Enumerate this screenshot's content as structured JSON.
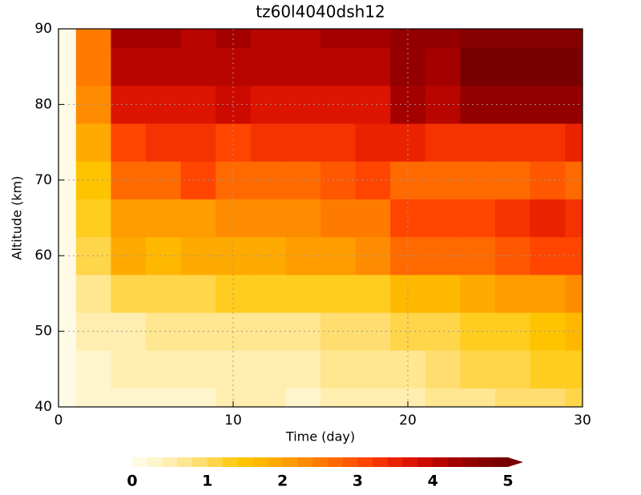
{
  "chart_data": {
    "type": "heatmap",
    "title": "tz60l4040dsh12",
    "x_label": "Time (day)",
    "y_label": "Altitude (km)",
    "x": [
      0,
      2,
      4,
      6,
      8,
      10,
      12,
      14,
      16,
      18,
      20,
      22,
      24,
      26,
      28,
      30
    ],
    "y": [
      40,
      45,
      50,
      55,
      60,
      65,
      70,
      75,
      80,
      85,
      90
    ],
    "z": [
      [
        0,
        0.2,
        0.3,
        0.3,
        0.3,
        0.4,
        0.4,
        0.3,
        0.4,
        0.5,
        0.5,
        0.6,
        0.7,
        0.8,
        0.9,
        1.0
      ],
      [
        0,
        0.3,
        0.4,
        0.4,
        0.4,
        0.5,
        0.5,
        0.5,
        0.6,
        0.6,
        0.7,
        0.8,
        1.0,
        1.1,
        1.2,
        1.3
      ],
      [
        0,
        0.4,
        0.5,
        0.6,
        0.6,
        0.7,
        0.7,
        0.7,
        0.8,
        0.8,
        1.0,
        1.1,
        1.3,
        1.4,
        1.5,
        1.6
      ],
      [
        0,
        0.6,
        1.0,
        1.0,
        1.1,
        1.2,
        1.2,
        1.2,
        1.3,
        1.4,
        1.6,
        1.7,
        1.9,
        2.0,
        2.1,
        2.2
      ],
      [
        0,
        1.0,
        1.8,
        1.7,
        1.8,
        1.9,
        1.9,
        2.0,
        2.1,
        2.3,
        2.6,
        2.7,
        2.8,
        2.9,
        3.0,
        3.0
      ],
      [
        0,
        1.2,
        2.0,
        2.0,
        2.1,
        2.2,
        2.2,
        2.3,
        2.4,
        2.5,
        3.0,
        3.1,
        3.0,
        3.2,
        3.5,
        3.3
      ],
      [
        0,
        1.5,
        2.6,
        2.6,
        3.0,
        2.8,
        2.7,
        2.8,
        2.9,
        3.0,
        2.6,
        2.7,
        2.7,
        2.8,
        2.9,
        2.8
      ],
      [
        0,
        1.8,
        3.0,
        3.2,
        3.3,
        3.1,
        3.2,
        3.3,
        3.3,
        3.4,
        3.5,
        3.2,
        3.3,
        3.3,
        3.2,
        3.4
      ],
      [
        0,
        2.2,
        3.6,
        3.7,
        3.7,
        3.8,
        3.7,
        3.6,
        3.6,
        3.7,
        4.2,
        4.0,
        4.4,
        4.5,
        4.5,
        4.4
      ],
      [
        0,
        2.4,
        4.0,
        4.1,
        4.0,
        4.1,
        4.0,
        4.0,
        4.1,
        4.1,
        4.5,
        4.3,
        5.0,
        5.1,
        5.1,
        5.0
      ],
      [
        0,
        2.4,
        4.2,
        4.2,
        4.1,
        4.2,
        4.1,
        4.1,
        4.2,
        4.2,
        4.4,
        4.4,
        4.6,
        4.7,
        4.7,
        4.7
      ]
    ],
    "xlim": [
      0,
      30
    ],
    "xticks": [
      0,
      10,
      20,
      30
    ],
    "ylim": [
      40,
      90
    ],
    "yticks": [
      40,
      50,
      60,
      70,
      80,
      90
    ],
    "grid": true,
    "clim": [
      0,
      5
    ],
    "cticks": [
      0,
      1,
      2,
      3,
      4,
      5
    ],
    "colors": [
      "#fffae6",
      "#fff5cc",
      "#ffeeb0",
      "#ffe690",
      "#ffdd70",
      "#ffd54a",
      "#ffcc20",
      "#ffc400",
      "#ffb800",
      "#ffaa00",
      "#ff9c00",
      "#ff8c00",
      "#ff7b00",
      "#ff6a00",
      "#ff5800",
      "#ff4500",
      "#f53300",
      "#ea2200",
      "#dd1400",
      "#cc0a00",
      "#b80500",
      "#a50000",
      "#940000",
      "#850000",
      "#780000"
    ]
  }
}
